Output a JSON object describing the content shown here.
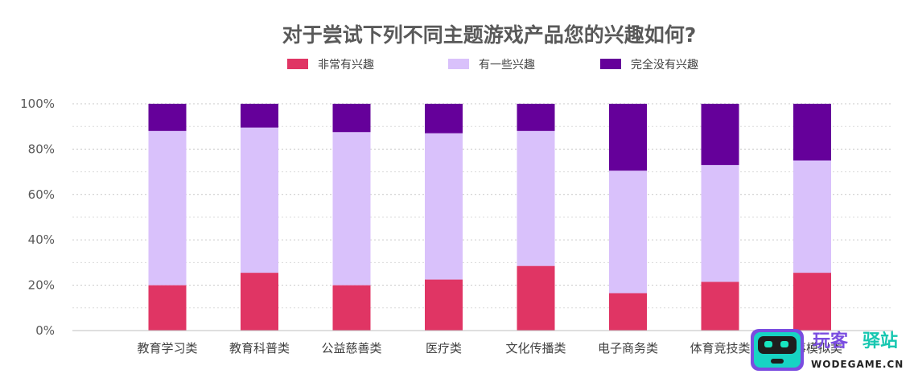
{
  "colors": {
    "very_interested": "#e03564",
    "somewhat_interested": "#d9c1fb",
    "not_interested": "#65009a",
    "grid": "#c8c8c8",
    "axis": "#bfbfbf"
  },
  "chart_data": {
    "type": "bar",
    "stacked": true,
    "title": "对于尝试下列不同主题游戏产品您的兴趣如何?",
    "xlabel": "",
    "ylabel": "",
    "ylim": [
      0,
      100
    ],
    "yticks": [
      "0%",
      "20%",
      "40%",
      "60%",
      "80%",
      "100%"
    ],
    "grid": true,
    "legend_position": "top",
    "categories": [
      "教育学习类",
      "教育科普类",
      "公益慈善类",
      "医疗类",
      "文化传播类",
      "电子商务类",
      "体育竞技类",
      "军事模拟类"
    ],
    "series": [
      {
        "name": "非常有兴趣",
        "values": [
          20,
          25.5,
          20,
          22.5,
          28.5,
          16.5,
          21.5,
          25.5
        ]
      },
      {
        "name": "有一些兴趣",
        "values": [
          68,
          64,
          67.5,
          64.5,
          59.5,
          54,
          51.5,
          49.5
        ]
      },
      {
        "name": "完全没有兴趣",
        "values": [
          12,
          10.5,
          12.5,
          13,
          12,
          29.5,
          27,
          25
        ]
      }
    ]
  },
  "watermark": {
    "cn_left": "玩客",
    "cn_right": "驿站",
    "en": "WODEGAME.CN"
  }
}
